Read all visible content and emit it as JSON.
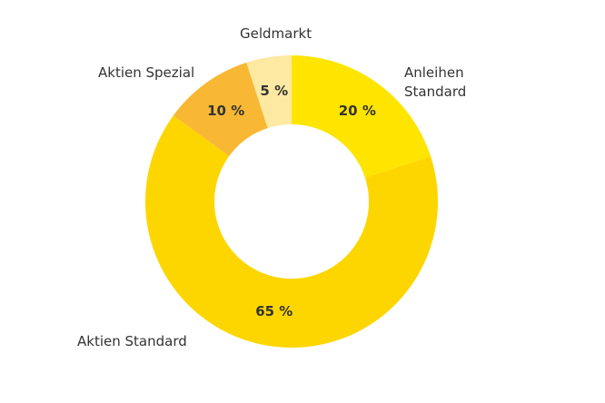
{
  "chart_data": {
    "type": "donut",
    "categories": [
      "Anleihen Standard",
      "Aktien Standard",
      "Aktien Spezial",
      "Geldmarkt"
    ],
    "values": [
      20,
      65,
      10,
      5
    ],
    "value_labels": [
      "20 %",
      "65 %",
      "10 %",
      "5 %"
    ],
    "colors": [
      "#fde500",
      "#fdd600",
      "#f8b833",
      "#fee9a3"
    ]
  }
}
